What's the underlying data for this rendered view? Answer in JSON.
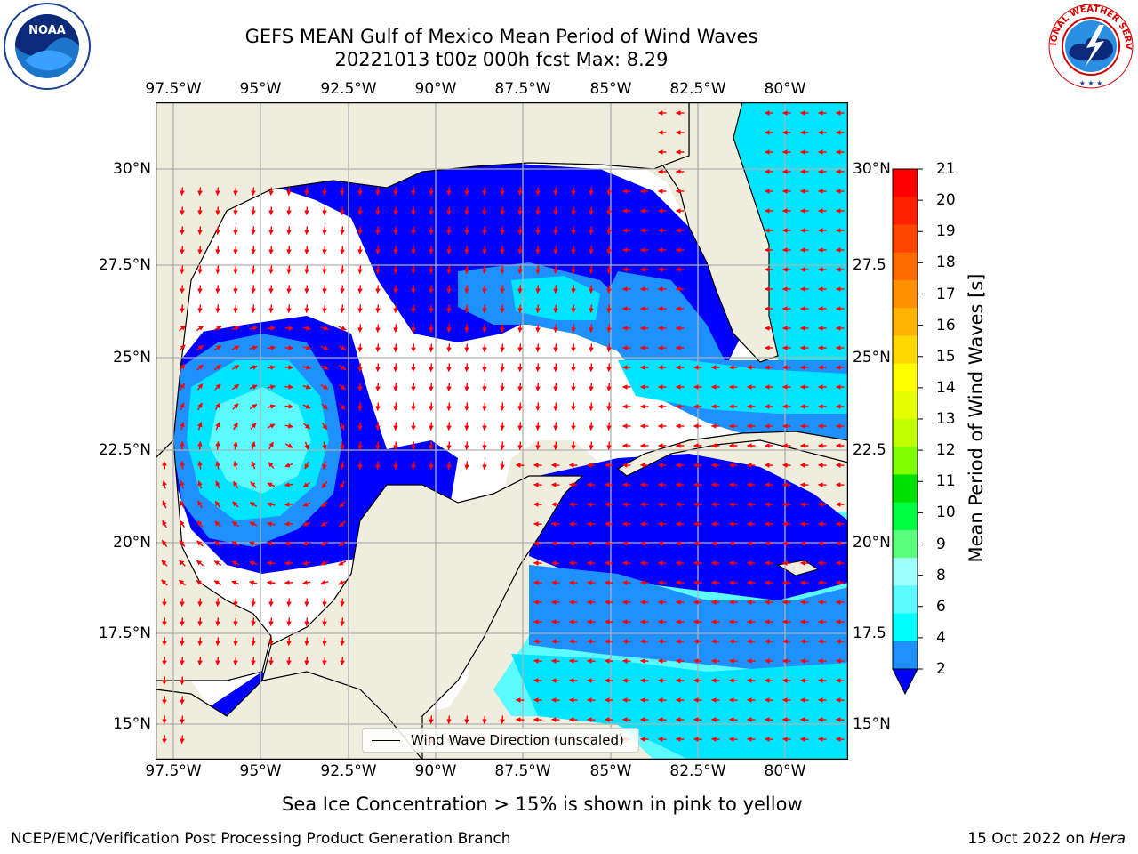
{
  "title": {
    "line1": "GEFS MEAN Gulf of Mexico Mean Period of Wind Waves",
    "line2": "20221013 t00z 000h fcst   Max: 8.29"
  },
  "map": {
    "lon_labels": [
      "97.5°W",
      "95°W",
      "92.5°W",
      "90°W",
      "87.5°W",
      "85°W",
      "82.5°W",
      "80°W"
    ],
    "lat_labels_left": [
      "30°N",
      "27.5°N",
      "25°N",
      "22.5°N",
      "20°N",
      "17.5°N",
      "15°N"
    ],
    "lat_labels_right": [
      "30°N",
      "27.5",
      "25°N",
      "22.5",
      "20°N",
      "17.5",
      "15°N"
    ],
    "lon_range": [
      -98,
      -78.2
    ],
    "lat_range": [
      14,
      31.7
    ],
    "grid": true,
    "colors": {
      "land": "#efedde",
      "ocean_low": "#ffffff",
      "level_0_2": "#0000ff",
      "level_2_4": "#1e90ff",
      "level_4_6": "#00e5ff",
      "level_6_8": "#5bfbff",
      "level_8_9": "#a0ffff",
      "arrow": "#ff0000",
      "coast": "#000000",
      "gridline": "#b0b0b0"
    }
  },
  "legend": {
    "label": "Wind Wave Direction (unscaled)",
    "placement": "lower-center"
  },
  "colorbar": {
    "label": "Mean Period of Wind Waves [s]",
    "ticks": [
      "21",
      "20",
      "19",
      "18",
      "17",
      "16",
      "15",
      "14",
      "13",
      "12",
      "11",
      "10",
      "9",
      "8",
      "6",
      "4",
      "2"
    ],
    "bands": [
      "#ff0000",
      "#ff2000",
      "#ff4500",
      "#ff6a00",
      "#ff9000",
      "#ffb300",
      "#ffd700",
      "#ffff00",
      "#e6ff00",
      "#c0ff00",
      "#80ff00",
      "#00e000",
      "#00ff40",
      "#5bff80",
      "#a0ffff",
      "#5bfbff",
      "#00ffff",
      "#1e90ff"
    ],
    "extend_color": "#0000ff"
  },
  "caption": "Sea Ice Concentration > 15% is shown in pink to yellow",
  "footer": {
    "left": "NCEP/EMC/Verification Post Processing Product Generation Branch",
    "right_date": "15 Oct 2022 on ",
    "right_host": "Hera"
  },
  "logos": {
    "noaa_text": "NOAA",
    "nws_text": "NATIONAL WEATHER SERVICE"
  }
}
